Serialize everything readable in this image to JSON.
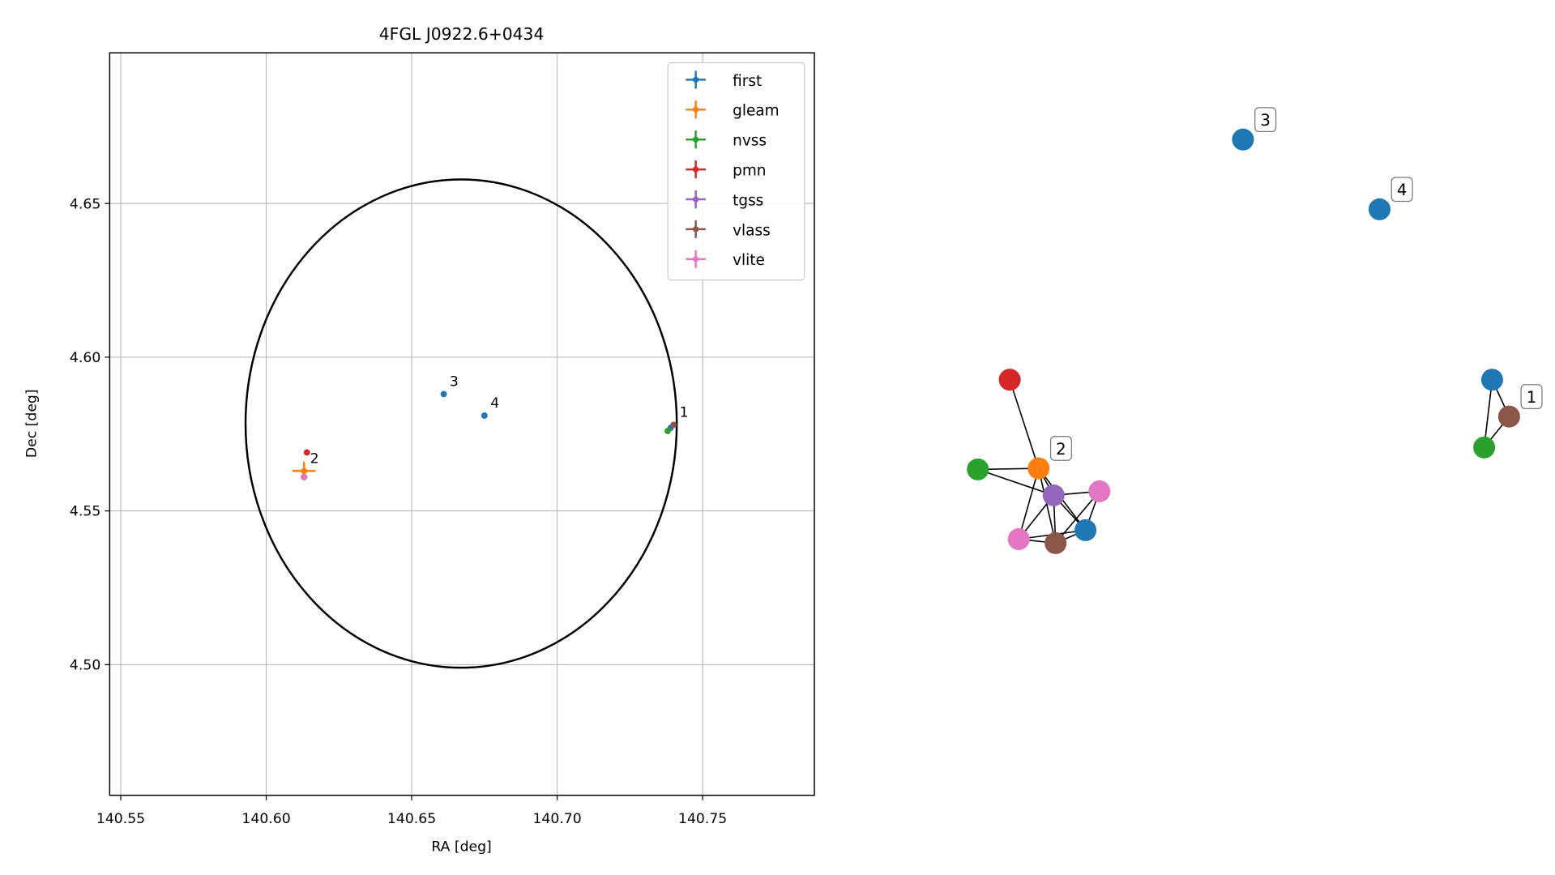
{
  "chart_data": [
    {
      "type": "scatter",
      "title": "4FGL J0922.6+0434",
      "x_label": "RA [deg]",
      "y_label": "Dec [deg]",
      "xlim": [
        140.5462,
        140.7884
      ],
      "ylim": [
        4.4575,
        4.699
      ],
      "xticks": [
        {
          "value": 140.55,
          "label": "140.55"
        },
        {
          "value": 140.6,
          "label": "140.60"
        },
        {
          "value": 140.65,
          "label": "140.65"
        },
        {
          "value": 140.7,
          "label": "140.70"
        },
        {
          "value": 140.75,
          "label": "140.75"
        }
      ],
      "yticks": [
        {
          "value": 4.5,
          "label": "4.50"
        },
        4.55,
        {
          "value": 4.6,
          "label": "4.60"
        },
        4.65
      ],
      "grid": true,
      "legend": "upper right",
      "ellipse": {
        "center": [
          140.667,
          4.5784
        ],
        "semi_axes": [
          0.0741,
          0.0794
        ]
      },
      "series": [
        {
          "name": "first",
          "color": "#1f77b4",
          "x": [
            140.661,
            140.675,
            140.739,
            140.613
          ],
          "values": [
            4.588,
            4.581,
            4.577,
            4.561
          ]
        },
        {
          "name": "gleam",
          "color": "#ff7f0e",
          "x": [
            140.613
          ],
          "values": [
            4.563
          ],
          "xerr": [
            0.004
          ],
          "yerr": [
            0.003
          ]
        },
        {
          "name": "nvss",
          "color": "#2ca02c",
          "x": [
            140.738,
            140.613
          ],
          "values": [
            4.576,
            4.561
          ]
        },
        {
          "name": "pmn",
          "color": "#d62728",
          "x": [
            140.614
          ],
          "values": [
            4.569
          ]
        },
        {
          "name": "tgss",
          "color": "#9467bd",
          "x": [
            140.613
          ],
          "values": [
            4.561
          ]
        },
        {
          "name": "vlass",
          "color": "#8c564b",
          "x": [
            140.74,
            140.613
          ],
          "values": [
            4.578,
            4.561
          ]
        },
        {
          "name": "vlite",
          "color": "#e377c2",
          "x": [
            140.613,
            140.613
          ],
          "values": [
            4.561,
            4.561
          ]
        }
      ],
      "annotations": [
        {
          "text": "1",
          "x": 140.74,
          "y": 4.578
        },
        {
          "text": "2",
          "x": 140.613,
          "y": 4.563
        },
        {
          "text": "3",
          "x": 140.661,
          "y": 4.588
        },
        {
          "text": "4",
          "x": 140.675,
          "y": 4.581
        }
      ]
    },
    {
      "type": "network",
      "nodes": [
        {
          "color": "#1f77b4"
        },
        {
          "color": "#8c564b"
        },
        {
          "color": "#e377c2"
        },
        {
          "color": "#9467bd"
        },
        {
          "color": "#e377c2"
        },
        {
          "color": "#ff7f0e",
          "label": "2"
        },
        {
          "color": "#2ca02c"
        },
        {
          "color": "#d62728"
        },
        {
          "color": "#1f77b4",
          "label": "3"
        },
        {
          "color": "#1f77b4",
          "label": "4"
        },
        {
          "color": "#1f77b4"
        },
        {
          "color": "#8c564b",
          "label": "1"
        },
        {
          "color": "#2ca02c"
        }
      ],
      "edges": [
        [
          7,
          5
        ],
        [
          6,
          5
        ],
        [
          6,
          3
        ],
        [
          5,
          3
        ],
        [
          5,
          2
        ],
        [
          5,
          1
        ],
        [
          5,
          0
        ],
        [
          3,
          2
        ],
        [
          3,
          1
        ],
        [
          3,
          0
        ],
        [
          3,
          4
        ],
        [
          2,
          1
        ],
        [
          2,
          0
        ],
        [
          1,
          0
        ],
        [
          4,
          0
        ],
        [
          4,
          1
        ],
        [
          10,
          11
        ],
        [
          10,
          12
        ],
        [
          11,
          12
        ]
      ]
    }
  ]
}
